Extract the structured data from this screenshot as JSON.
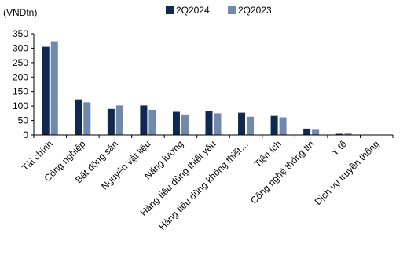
{
  "chart_data": {
    "type": "bar",
    "unit_label": "(VNDtn)",
    "categories": [
      "Tài chính",
      "Công nghiệp",
      "Bất động sản",
      "Nguyên vật liệu",
      "Năng lượng",
      "Hàng tiêu dùng thiết yếu",
      "Hàng tiêu dùng không thiết…",
      "Tiện ích",
      "Công nghệ thông tin",
      "Y tế",
      "Dịch vụ truyền thông"
    ],
    "series": [
      {
        "name": "2Q2024",
        "color": "#0f2a52",
        "values": [
          305,
          123,
          90,
          102,
          80,
          82,
          77,
          66,
          22,
          4,
          0
        ]
      },
      {
        "name": "2Q2023",
        "color": "#7189ad",
        "values": [
          324,
          113,
          102,
          87,
          71,
          75,
          63,
          61,
          18,
          5,
          0
        ]
      }
    ],
    "y_ticks": [
      "0",
      "50",
      "100",
      "150",
      "200",
      "250",
      "300",
      "350"
    ],
    "ylim": [
      0,
      350
    ],
    "grid": false,
    "legend_position": "top-center"
  }
}
